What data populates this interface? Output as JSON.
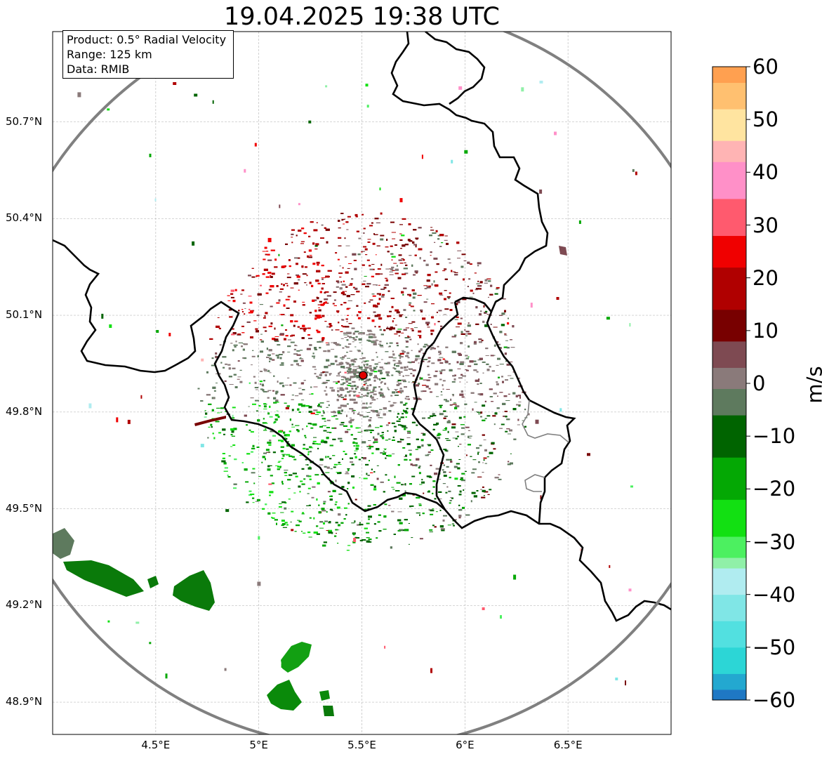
{
  "title": "19.04.2025 19:38 UTC",
  "info": {
    "product": "Product: 0.5° Radial Velocity",
    "range": "Range: 125 km",
    "source": "Data: RMIB"
  },
  "lat_labels": [
    "50.7°N",
    "50.4°N",
    "50.1°N",
    "49.8°N",
    "49.5°N",
    "49.2°N",
    "48.9°N"
  ],
  "lon_labels": [
    "4.5°E",
    "5°E",
    "5.5°E",
    "6°E",
    "6.5°E"
  ],
  "map": {
    "lon_range": [
      4.0,
      7.0
    ],
    "lat_range": [
      48.8,
      50.98
    ],
    "lat_ticks": [
      50.7,
      50.4,
      50.1,
      49.8,
      49.5,
      49.2,
      48.9
    ],
    "lon_ticks": [
      4.5,
      5.0,
      5.5,
      6.0,
      6.5
    ],
    "radar_site": {
      "lon": 5.506,
      "lat": 49.914,
      "color": "#e00000"
    },
    "range_ring_color": "#808080",
    "border_color": "#000000"
  },
  "colorbar": {
    "label": "m/s",
    "vmin": -60,
    "vmax": 60,
    "ticks": [
      "60",
      "50",
      "40",
      "30",
      "20",
      "10",
      "0",
      "−10",
      "−20",
      "−30",
      "−40",
      "−50",
      "−60"
    ],
    "tick_values": [
      60,
      50,
      40,
      30,
      20,
      10,
      0,
      -10,
      -20,
      -30,
      -40,
      -50,
      -60
    ],
    "colors": [
      {
        "from": -60,
        "to": -58,
        "color": "#1f78c4"
      },
      {
        "from": -58,
        "to": -55,
        "color": "#23a8d0"
      },
      {
        "from": -55,
        "to": -50,
        "color": "#2cd6d6"
      },
      {
        "from": -50,
        "to": -45,
        "color": "#52e0e0"
      },
      {
        "from": -45,
        "to": -40,
        "color": "#80e6e6"
      },
      {
        "from": -40,
        "to": -35,
        "color": "#b0ecf0"
      },
      {
        "from": -35,
        "to": -33,
        "color": "#90f0a8"
      },
      {
        "from": -33,
        "to": -29,
        "color": "#4cf060"
      },
      {
        "from": -29,
        "to": -22,
        "color": "#12e012"
      },
      {
        "from": -22,
        "to": -14,
        "color": "#04a804"
      },
      {
        "from": -14,
        "to": -6,
        "color": "#006400"
      },
      {
        "from": -6,
        "to": -1,
        "color": "#5e7a5e"
      },
      {
        "from": -1,
        "to": 3,
        "color": "#8a7a7a"
      },
      {
        "from": 3,
        "to": 8,
        "color": "#7e4a52"
      },
      {
        "from": 8,
        "to": 14,
        "color": "#780000"
      },
      {
        "from": 14,
        "to": 22,
        "color": "#b00000"
      },
      {
        "from": 22,
        "to": 28,
        "color": "#f00000"
      },
      {
        "from": 28,
        "to": 35,
        "color": "#ff5a6e"
      },
      {
        "from": 35,
        "to": 42,
        "color": "#ff90c8"
      },
      {
        "from": 42,
        "to": 46,
        "color": "#ffb4b4"
      },
      {
        "from": 46,
        "to": 52,
        "color": "#ffe4a0"
      },
      {
        "from": 52,
        "to": 57,
        "color": "#ffc070"
      },
      {
        "from": 57,
        "to": 60,
        "color": "#ffa050"
      }
    ]
  }
}
